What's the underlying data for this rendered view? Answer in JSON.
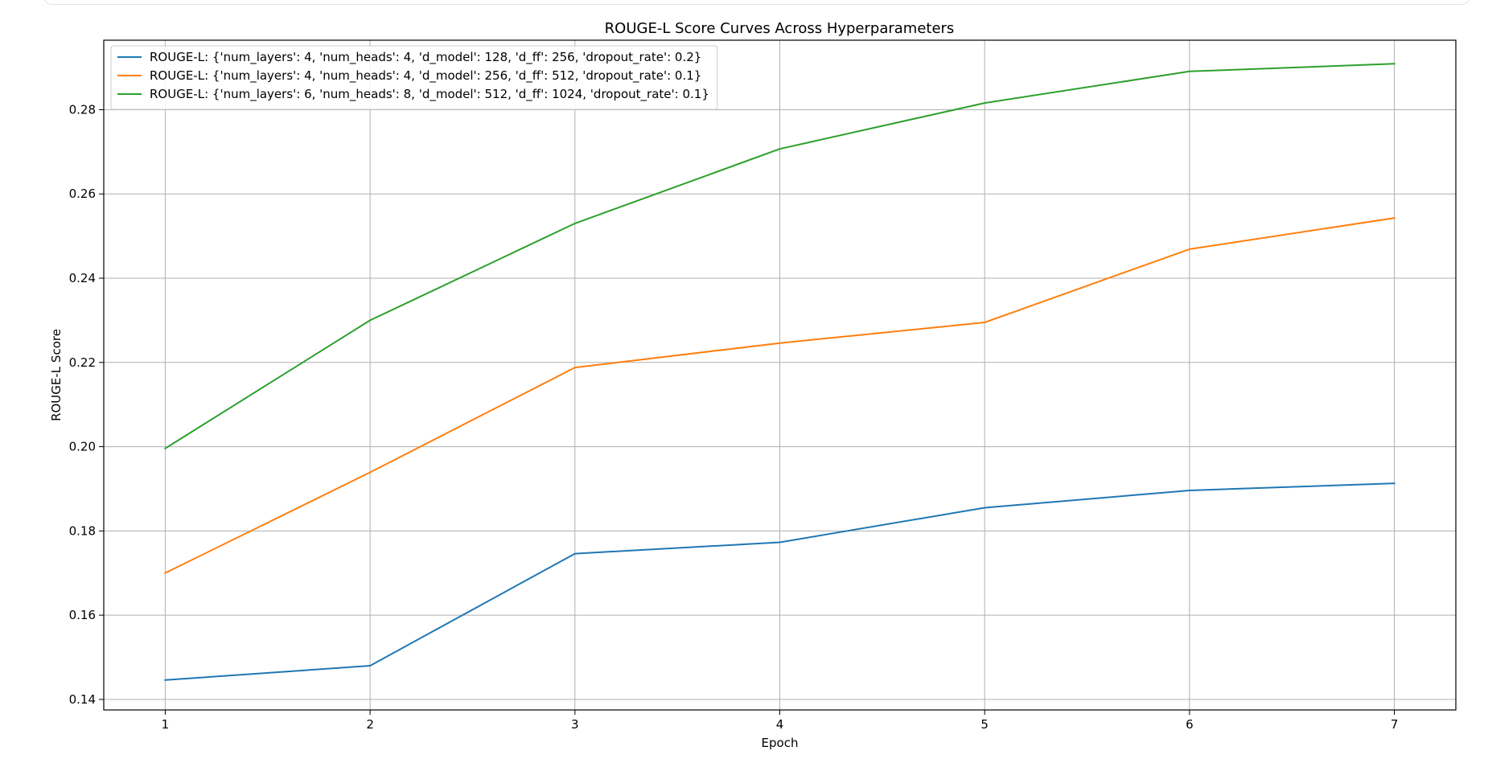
{
  "chart_data": {
    "type": "line",
    "title": "ROUGE-L Score Curves Across Hyperparameters",
    "xlabel": "Epoch",
    "ylabel": "ROUGE-L Score",
    "x": [
      1,
      2,
      3,
      4,
      5,
      6,
      7
    ],
    "xlim": [
      0.7,
      7.3
    ],
    "ylim": [
      0.1375,
      0.2965
    ],
    "xticks": [
      1,
      2,
      3,
      4,
      5,
      6,
      7
    ],
    "yticks": [
      0.14,
      0.16,
      0.18,
      0.2,
      0.22,
      0.24,
      0.26,
      0.28
    ],
    "ytick_labels": [
      "0.14",
      "0.16",
      "0.18",
      "0.20",
      "0.22",
      "0.24",
      "0.26",
      "0.28"
    ],
    "grid": true,
    "legend_position": "top-left",
    "series": [
      {
        "name": "ROUGE-L: {'num_layers': 4, 'num_heads': 4, 'd_model': 128, 'd_ff': 256, 'dropout_rate': 0.2}",
        "color": "#1f77b4",
        "values": [
          0.1446,
          0.148,
          0.1746,
          0.1773,
          0.1855,
          0.1896,
          0.1913
        ]
      },
      {
        "name": "ROUGE-L: {'num_layers': 4, 'num_heads': 4, 'd_model': 256, 'd_ff': 512, 'dropout_rate': 0.1}",
        "color": "#ff7f0e",
        "values": [
          0.17,
          0.1939,
          0.2188,
          0.2246,
          0.2295,
          0.2469,
          0.2543
        ]
      },
      {
        "name": "ROUGE-L: {'num_layers': 6, 'num_heads': 8, 'd_model': 512, 'd_ff': 1024, 'dropout_rate': 0.1}",
        "color": "#2ca02c",
        "values": [
          0.1996,
          0.23,
          0.253,
          0.2707,
          0.2816,
          0.2891,
          0.2909
        ]
      }
    ]
  }
}
